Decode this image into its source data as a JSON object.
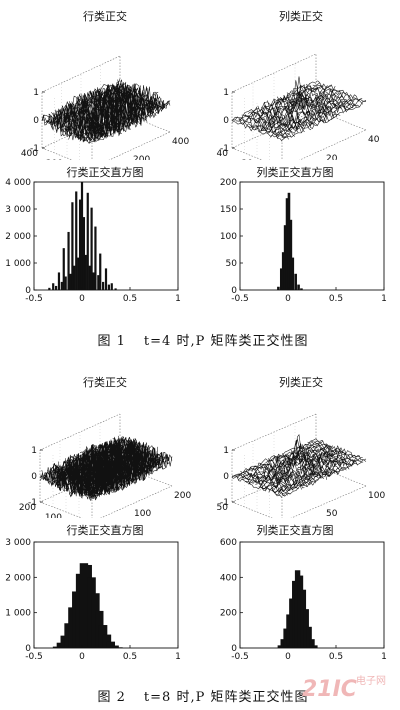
{
  "figures": [
    {
      "caption_prefix": "图 1",
      "caption_text": "t=4 时,P 矩阵类正交性图",
      "panels": {
        "row_surface": {
          "title": "行类正交",
          "z_ticks": [
            "1",
            "0",
            "-1"
          ],
          "y_ticks": [
            "400",
            "200",
            "0"
          ],
          "x_ticks": [
            "0",
            "200",
            "400"
          ]
        },
        "col_surface": {
          "title": "列类正交",
          "z_ticks": [
            "1",
            "0",
            "-1"
          ],
          "y_ticks": [
            "40",
            "20",
            "0"
          ],
          "x_ticks": [
            "0",
            "20",
            "40"
          ]
        },
        "row_hist": {
          "title": "行类正交直方图"
        },
        "col_hist": {
          "title": "列类正交直方图"
        }
      }
    },
    {
      "caption_prefix": "图 2",
      "caption_text": "t=8 时,P 矩阵类正交性图",
      "panels": {
        "row_surface": {
          "title": "行类正交",
          "z_ticks": [
            "1",
            "0",
            "-1"
          ],
          "y_ticks": [
            "200",
            "100",
            "0"
          ],
          "x_ticks": [
            "0",
            "100",
            "200"
          ]
        },
        "col_surface": {
          "title": "列类正交",
          "z_ticks": [
            "1",
            "0",
            "-1"
          ],
          "y_ticks": [
            "50",
            "0"
          ],
          "x_ticks": [
            "0",
            "50",
            "100"
          ]
        },
        "row_hist": {
          "title": "行类正交直方图"
        },
        "col_hist": {
          "title": "列类正交直方图"
        }
      }
    }
  ],
  "chart_data": [
    {
      "type": "bar",
      "title": "行类正交直方图",
      "figure": "图 1",
      "x_ticks": [
        "-0.5",
        "0",
        "0.5",
        "1"
      ],
      "y_ticks": [
        "0",
        "1 000",
        "2 000",
        "3 000",
        "4 000"
      ],
      "xlim": [
        -0.5,
        1
      ],
      "ylim": [
        0,
        4000
      ],
      "x": [
        -0.34,
        -0.3,
        -0.27,
        -0.24,
        -0.21,
        -0.19,
        -0.17,
        -0.14,
        -0.12,
        -0.1,
        -0.08,
        -0.06,
        -0.04,
        -0.02,
        0.0,
        0.02,
        0.04,
        0.06,
        0.08,
        0.1,
        0.12,
        0.14,
        0.17,
        0.19,
        0.22,
        0.25,
        0.28,
        0.31,
        0.35
      ],
      "values": [
        80,
        250,
        150,
        650,
        300,
        1550,
        500,
        2150,
        600,
        3250,
        900,
        3650,
        1200,
        3350,
        4000,
        2700,
        1300,
        3600,
        900,
        3050,
        650,
        2350,
        550,
        1350,
        300,
        800,
        200,
        250,
        60
      ]
    },
    {
      "type": "bar",
      "title": "列类正交直方图",
      "figure": "图 1",
      "x_ticks": [
        "-0.5",
        "0",
        "0.5",
        "1"
      ],
      "y_ticks": [
        "0",
        "50",
        "100",
        "150",
        "200"
      ],
      "xlim": [
        -0.5,
        1
      ],
      "ylim": [
        0,
        200
      ],
      "x": [
        -0.1,
        -0.07,
        -0.05,
        -0.03,
        -0.01,
        0.01,
        0.03,
        0.05,
        0.08,
        0.11,
        0.14
      ],
      "values": [
        6,
        40,
        70,
        120,
        170,
        180,
        130,
        60,
        30,
        10,
        3
      ]
    },
    {
      "type": "bar",
      "title": "行类正交直方图",
      "figure": "图 2",
      "x_ticks": [
        "-0.5",
        "0",
        "0.5",
        "1"
      ],
      "y_ticks": [
        "0",
        "1 000",
        "2 000",
        "3 000"
      ],
      "xlim": [
        -0.5,
        1
      ],
      "ylim": [
        0,
        3000
      ],
      "x": [
        -0.26,
        -0.22,
        -0.18,
        -0.14,
        -0.1,
        -0.06,
        -0.02,
        0.02,
        0.06,
        0.1,
        0.14,
        0.18,
        0.22,
        0.26,
        0.3,
        0.34,
        0.38
      ],
      "values": [
        40,
        150,
        350,
        700,
        1150,
        1600,
        2100,
        2400,
        2350,
        2000,
        1550,
        1050,
        650,
        380,
        180,
        70,
        20
      ]
    },
    {
      "type": "bar",
      "title": "列类正交直方图",
      "figure": "图 2",
      "x_ticks": [
        "-0.5",
        "0",
        "0.5",
        "1"
      ],
      "y_ticks": [
        "0",
        "200",
        "400",
        "600"
      ],
      "xlim": [
        -0.5,
        1
      ],
      "ylim": [
        0,
        600
      ],
      "x": [
        -0.08,
        -0.05,
        -0.02,
        0.01,
        0.04,
        0.07,
        0.1,
        0.13,
        0.16,
        0.19,
        0.22,
        0.25,
        0.28
      ],
      "values": [
        15,
        50,
        110,
        190,
        280,
        380,
        440,
        410,
        330,
        220,
        120,
        50,
        15
      ]
    }
  ]
}
